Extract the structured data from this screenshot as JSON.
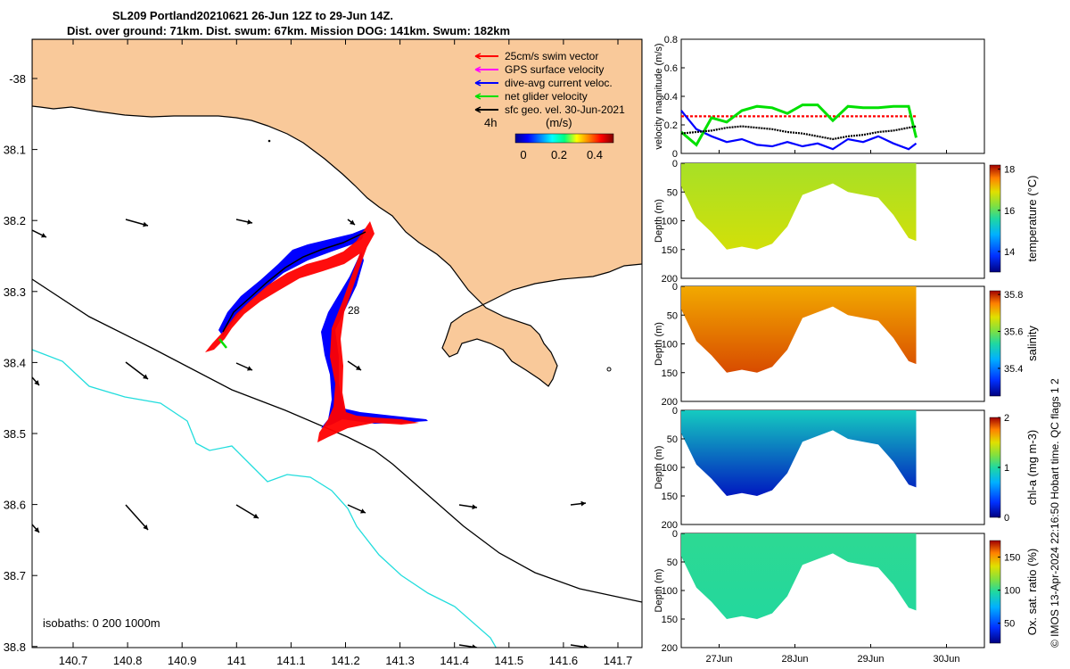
{
  "header": {
    "line1": "SL209 Portland20210621 26-Jun 12Z to 29-Jun 14Z.",
    "line2": "Dist. over ground: 71km. Dist. swum: 67km. Mission DOG: 141km. Swum: 182km"
  },
  "colors": {
    "land": "#f9c99a",
    "swim": "#ff0000",
    "gps": "#ff00ff",
    "dive_avg": "#0000ff",
    "net": "#00e000",
    "sfc_geo": "#000000",
    "isobath_200": "#000000",
    "isobath_1000": "#22dddd"
  },
  "map": {
    "legend": [
      {
        "label": "25cm/s swim vector",
        "color": "#ff0000"
      },
      {
        "label": "GPS surface velocity",
        "color": "#ff00ff"
      },
      {
        "label": "dive-avg current veloc.",
        "color": "#0000ff"
      },
      {
        "label": "net glider velocity",
        "color": "#00e000"
      },
      {
        "label": "sfc geo. vel. 30-Jun-2021",
        "color": "#000000"
      }
    ],
    "colorbar": {
      "label": "(m/s)",
      "ticks": [
        "0",
        "0.2",
        "0.4"
      ]
    },
    "annotation_4h": "4h",
    "day_label": "28",
    "isobaths_note": "isobaths: 0   200  1000m",
    "xticks": [
      "140.7",
      "140.8",
      "140.9",
      "141",
      "141.1",
      "141.2",
      "141.3",
      "141.4",
      "141.5",
      "141.6",
      "141.7"
    ],
    "yticks": [
      "-38",
      "38.1",
      "38.2",
      "38.3",
      "38.4",
      "38.5",
      "38.6",
      "38.7",
      "38.8"
    ]
  },
  "chart_data": [
    {
      "type": "line",
      "title": "velocity magnitude",
      "ylabel": "velocity magnitude (m/s)",
      "ylim": [
        0,
        0.8
      ],
      "yticks": [
        "0",
        "0.2",
        "0.4",
        "0.6",
        "0.8"
      ],
      "xlim": [
        26.5,
        30.5
      ],
      "x": [
        26.5,
        26.7,
        26.9,
        27.1,
        27.3,
        27.5,
        27.7,
        27.9,
        28.1,
        28.3,
        28.5,
        28.7,
        28.9,
        29.1,
        29.3,
        29.5,
        29.6
      ],
      "series": [
        {
          "name": "swim vector",
          "values": [
            0.26,
            0.26,
            0.26,
            0.26,
            0.26,
            0.26,
            0.26,
            0.26,
            0.26,
            0.26,
            0.26,
            0.26,
            0.26,
            0.26,
            0.26,
            0.26,
            0.26
          ]
        },
        {
          "name": "dive-avg current veloc.",
          "values": [
            0.3,
            0.17,
            0.12,
            0.08,
            0.1,
            0.06,
            0.05,
            0.08,
            0.05,
            0.07,
            0.03,
            0.1,
            0.08,
            0.12,
            0.07,
            0.03,
            0.07
          ]
        },
        {
          "name": "net glider velocity",
          "values": [
            0.15,
            0.06,
            0.25,
            0.22,
            0.3,
            0.33,
            0.32,
            0.28,
            0.34,
            0.34,
            0.23,
            0.33,
            0.32,
            0.32,
            0.33,
            0.33,
            0.11
          ]
        },
        {
          "name": "sfc geo. vel.",
          "values": [
            0.14,
            0.15,
            0.16,
            0.18,
            0.19,
            0.18,
            0.17,
            0.15,
            0.14,
            0.12,
            0.1,
            0.12,
            0.13,
            0.15,
            0.16,
            0.18,
            0.19
          ]
        }
      ]
    },
    {
      "type": "heatmap",
      "variable": "temperature",
      "colorbar_label": "temperature (°C)",
      "colorbar_ticks": [
        "14",
        "16",
        "18"
      ],
      "vrange": [
        13,
        18.2
      ],
      "ylabel": "Depth (m)",
      "yticks": [
        "0",
        "50",
        "100",
        "150",
        "200"
      ],
      "depth_profile_days": [
        26.5,
        26.7,
        26.9,
        27.1,
        27.3,
        27.5,
        27.7,
        27.9,
        28.1,
        28.3,
        28.5,
        28.7,
        28.9,
        29.1,
        29.3,
        29.5,
        29.6
      ],
      "max_depth_m": [
        40,
        95,
        120,
        150,
        145,
        150,
        140,
        110,
        55,
        45,
        35,
        50,
        55,
        60,
        90,
        130,
        135
      ],
      "surface_value": 16.5,
      "deep_value": 16.8
    },
    {
      "type": "heatmap",
      "variable": "salinity",
      "colorbar_label": "salinity",
      "colorbar_ticks": [
        "35.4",
        "35.6",
        "35.8"
      ],
      "vrange": [
        35.25,
        35.82
      ],
      "ylabel": "Depth (m)",
      "yticks": [
        "0",
        "50",
        "100",
        "150",
        "200"
      ],
      "surface_value": 35.72,
      "deep_value": 35.78
    },
    {
      "type": "heatmap",
      "variable": "chl-a",
      "colorbar_label": "chl-a (mg m-3)",
      "colorbar_ticks": [
        "0",
        "1",
        "2"
      ],
      "vrange": [
        0,
        2
      ],
      "ylabel": "Depth (m)",
      "yticks": [
        "0",
        "50",
        "100",
        "150",
        "200"
      ],
      "surface_value": 0.9,
      "deep_value": 0.15
    },
    {
      "type": "heatmap",
      "variable": "oxygen saturation",
      "colorbar_label": "Ox. sat. ratio (%)",
      "colorbar_ticks": [
        "50",
        "100",
        "150"
      ],
      "vrange": [
        20,
        175
      ],
      "ylabel": "Depth (m)",
      "yticks": [
        "0",
        "50",
        "100",
        "150",
        "200"
      ],
      "surface_value": 100,
      "deep_value": 98
    }
  ],
  "time_axis": {
    "labels": [
      "27Jun",
      "28Jun",
      "29Jun",
      "30Jun"
    ],
    "days": [
      27,
      28,
      29,
      30
    ]
  },
  "footer": "© IMOS 13-Apr-2024 22:16:50 Hobart time. QC flags 1  2"
}
